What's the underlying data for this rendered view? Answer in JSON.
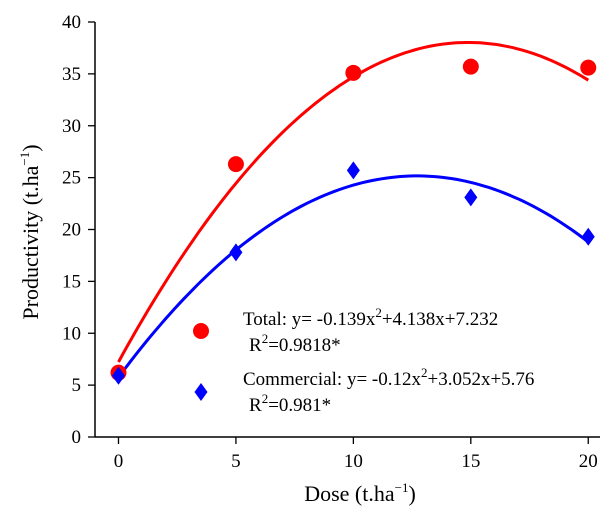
{
  "chart_data": {
    "type": "scatter",
    "xlabel": "Dose (t.ha",
    "xlabel_sup": "−1",
    "xlabel_end": ")",
    "ylabel": "Productivity (t.ha",
    "ylabel_sup": "−1",
    "ylabel_end": ")",
    "xlim": [
      -1,
      20.5
    ],
    "ylim": [
      0,
      40
    ],
    "xticks": [
      0,
      5,
      10,
      15,
      20
    ],
    "yticks": [
      0,
      5,
      10,
      15,
      20,
      25,
      30,
      35,
      40
    ],
    "grid": false,
    "series": [
      {
        "name": "Total",
        "marker": "circle",
        "color": "#ff0000",
        "x": [
          0,
          5,
          10,
          15,
          20
        ],
        "y": [
          6.2,
          26.3,
          35.1,
          35.7,
          35.6
        ],
        "fit": {
          "a": -0.139,
          "b": 4.138,
          "c": 7.232
        },
        "legend_eq_parts": [
          "Total: y= -0.139x",
          "2",
          "+4.138x+7.232"
        ],
        "legend_r2_parts": [
          "R",
          "2",
          "=0.9818*"
        ]
      },
      {
        "name": "Commercial",
        "marker": "diamond",
        "color": "#0000ff",
        "x": [
          0,
          5,
          10,
          15,
          20
        ],
        "y": [
          5.9,
          17.8,
          25.7,
          23.1,
          19.3
        ],
        "fit": {
          "a": -0.12,
          "b": 3.052,
          "c": 5.76
        },
        "legend_eq_parts": [
          "Commercial: y= -0.12x",
          "2",
          "+3.052x+5.76"
        ],
        "legend_r2_parts": [
          "R",
          "2",
          "=0.981*"
        ]
      }
    ],
    "legend_placement": "lower-right"
  }
}
